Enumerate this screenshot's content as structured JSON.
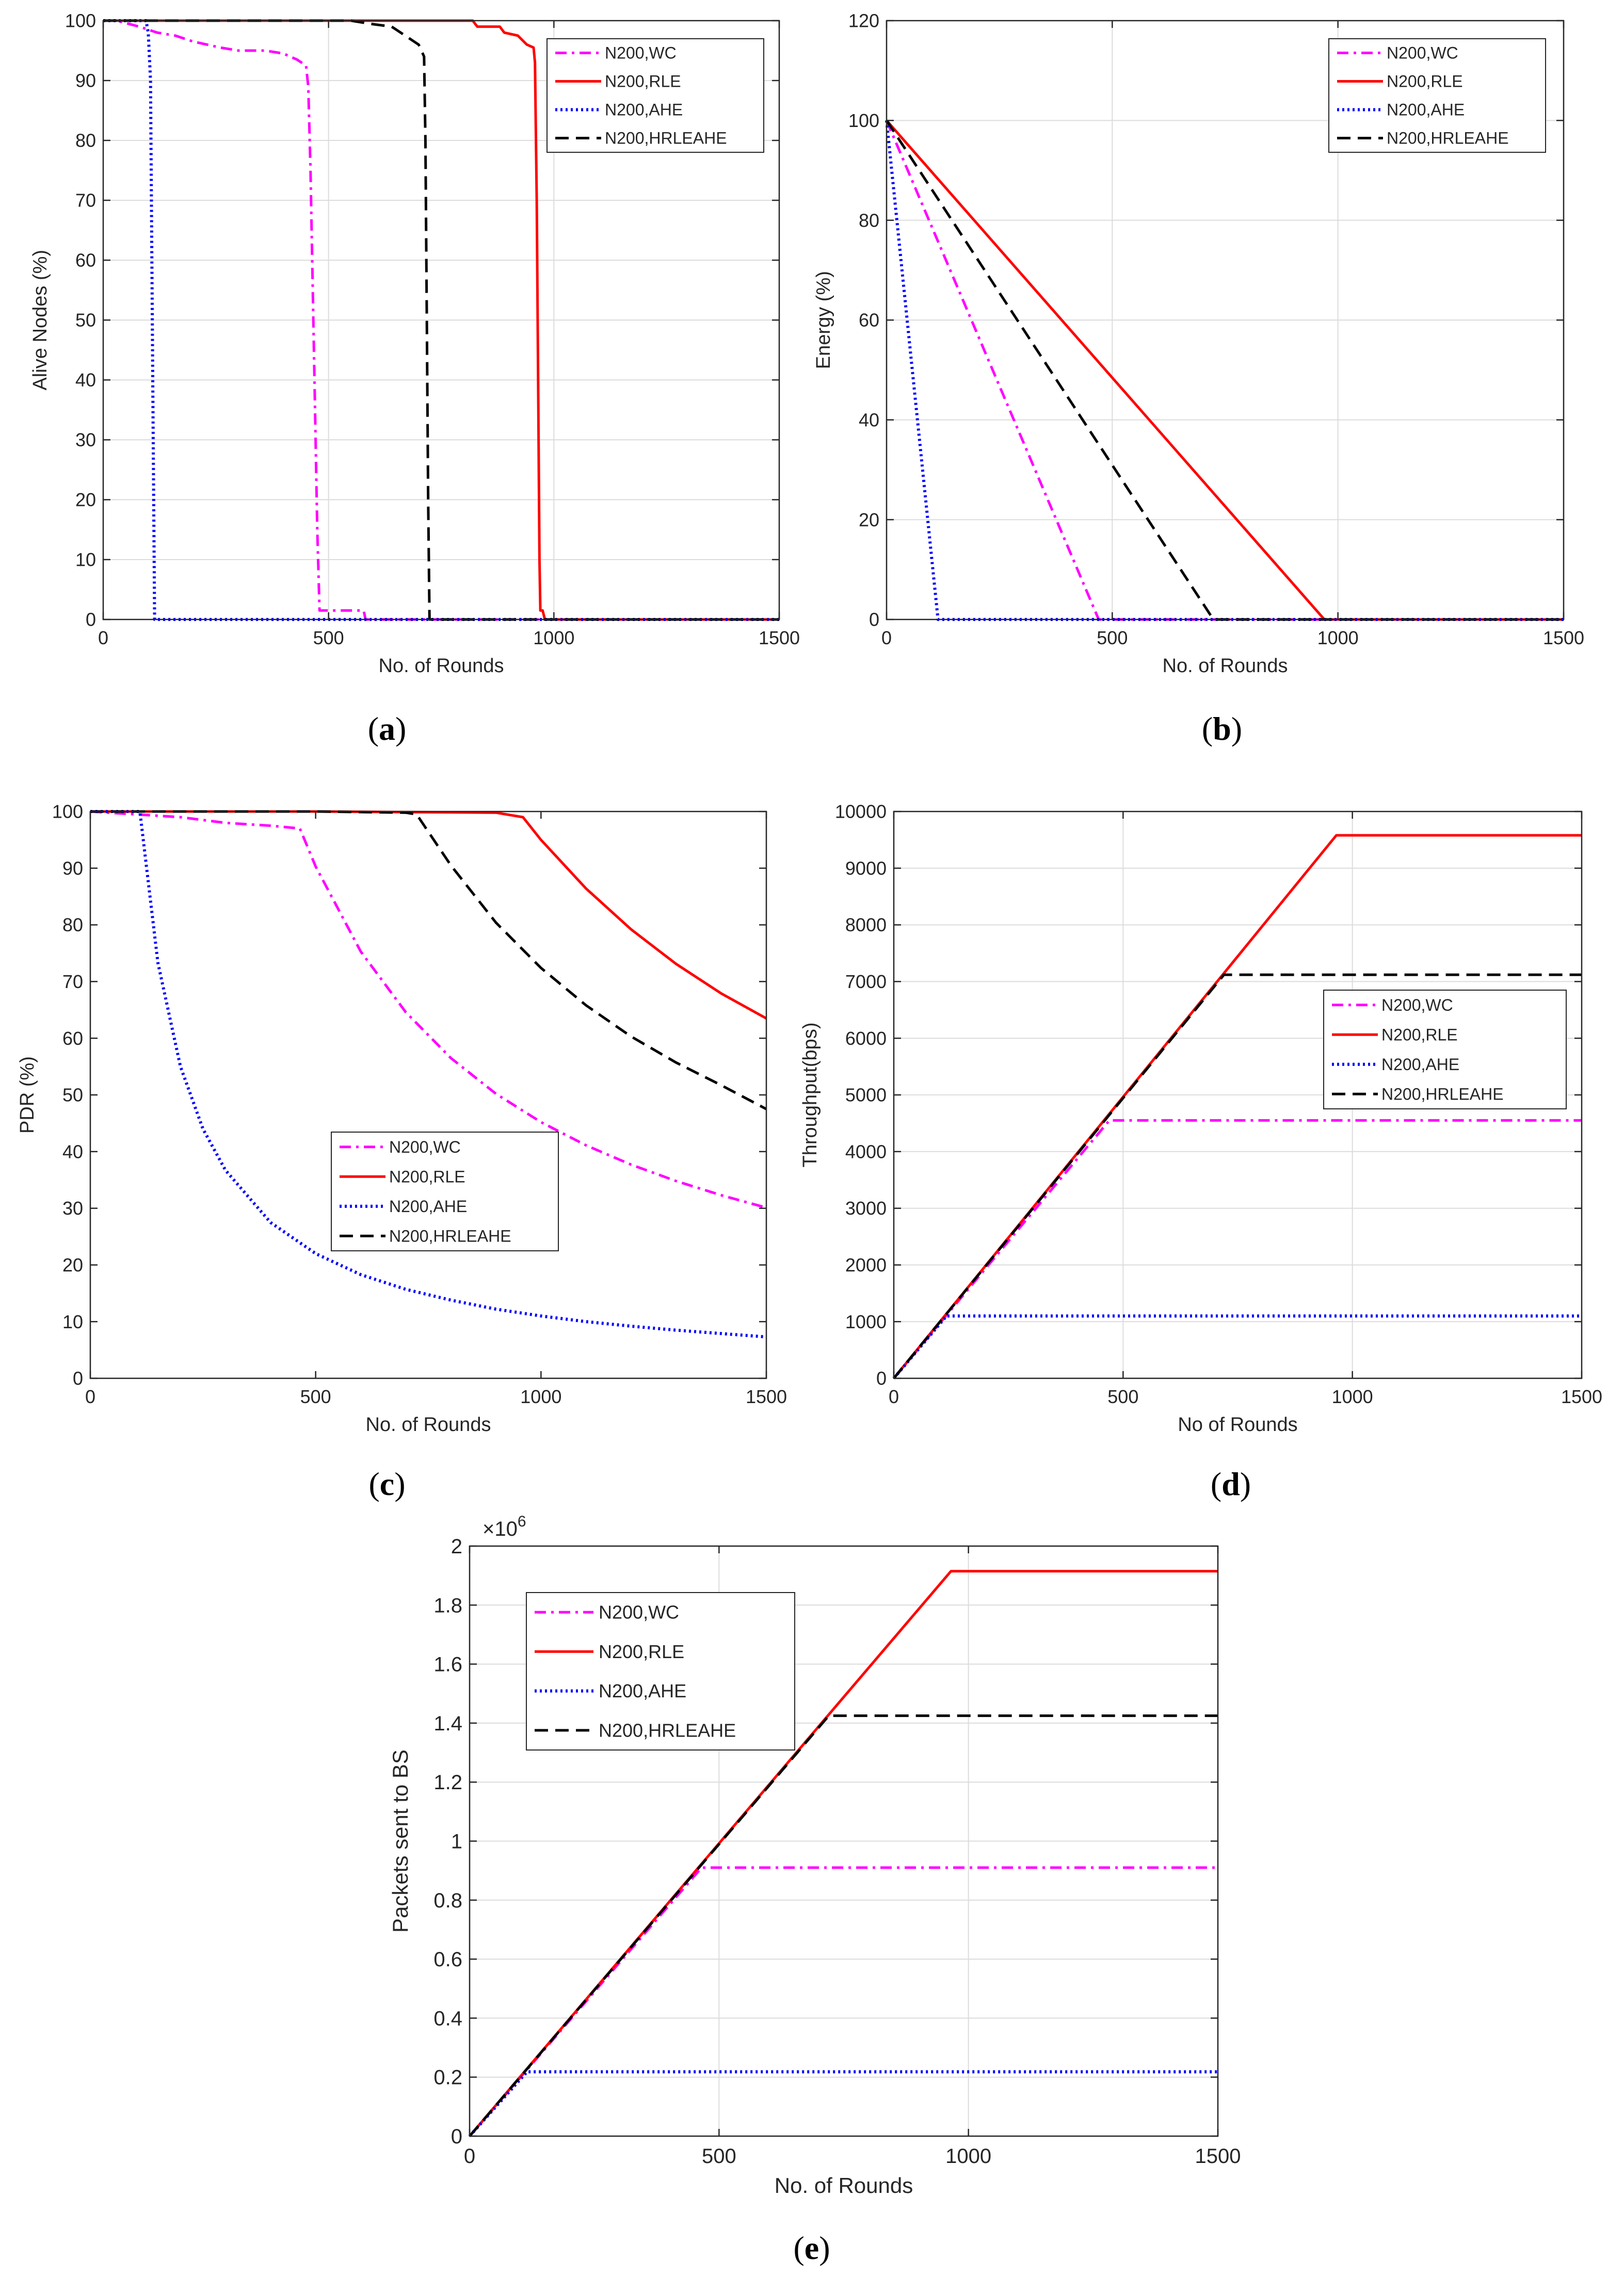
{
  "figure": {
    "panel_labels": [
      {
        "open": "(",
        "letter": "a",
        "close": ")"
      },
      {
        "open": "(",
        "letter": "b",
        "close": ")"
      },
      {
        "open": "(",
        "letter": "c",
        "close": ")"
      },
      {
        "open": "(",
        "letter": "d",
        "close": ")"
      },
      {
        "open": "(",
        "letter": "e",
        "close": ")"
      }
    ]
  },
  "chart_data": [
    {
      "id": "a",
      "type": "line",
      "title": "",
      "xlabel": "No. of Rounds",
      "ylabel": "Alive Nodes (%)",
      "xlim": [
        0,
        1500
      ],
      "ylim": [
        0,
        100
      ],
      "xticks": [
        0,
        500,
        1000,
        1500
      ],
      "yticks": [
        0,
        10,
        20,
        30,
        40,
        50,
        60,
        70,
        80,
        90,
        100
      ],
      "grid": true,
      "legend_position": "top-right",
      "series": [
        {
          "name": "N200,WC",
          "color": "#ff00ff",
          "dash": "dashdot",
          "points": [
            [
              0,
              100
            ],
            [
              30,
              100
            ],
            [
              80,
              99
            ],
            [
              120,
              98
            ],
            [
              160,
              97.5
            ],
            [
              200,
              96.5
            ],
            [
              260,
              95.5
            ],
            [
              300,
              95
            ],
            [
              360,
              95
            ],
            [
              400,
              94.5
            ],
            [
              430,
              93.5
            ],
            [
              450,
              92.5
            ],
            [
              455,
              89
            ],
            [
              460,
              75
            ],
            [
              465,
              55
            ],
            [
              470,
              35
            ],
            [
              475,
              15
            ],
            [
              480,
              1.5
            ],
            [
              578,
              1.5
            ],
            [
              582,
              0
            ],
            [
              1500,
              0
            ]
          ]
        },
        {
          "name": "N200,RLE",
          "color": "#ff0000",
          "dash": "solid",
          "points": [
            [
              0,
              100
            ],
            [
              820,
              100
            ],
            [
              830,
              99
            ],
            [
              880,
              99
            ],
            [
              890,
              98
            ],
            [
              920,
              97.5
            ],
            [
              940,
              96
            ],
            [
              955,
              95.5
            ],
            [
              958,
              93
            ],
            [
              962,
              70
            ],
            [
              965,
              40
            ],
            [
              968,
              10
            ],
            [
              970,
              1.5
            ],
            [
              975,
              1.5
            ],
            [
              980,
              0
            ],
            [
              1500,
              0
            ]
          ]
        },
        {
          "name": "N200,AHE",
          "color": "#0000ff",
          "dash": "dot",
          "points": [
            [
              0,
              100
            ],
            [
              95,
              100
            ],
            [
              100,
              98
            ],
            [
              105,
              90
            ],
            [
              108,
              60
            ],
            [
              111,
              30
            ],
            [
              114,
              0
            ],
            [
              1500,
              0
            ]
          ]
        },
        {
          "name": "N200,HRLEAHE",
          "color": "#000000",
          "dash": "dash",
          "points": [
            [
              0,
              100
            ],
            [
              550,
              100
            ],
            [
              590,
              99.5
            ],
            [
              640,
              99
            ],
            [
              680,
              97
            ],
            [
              700,
              96
            ],
            [
              712,
              94
            ],
            [
              715,
              80
            ],
            [
              718,
              50
            ],
            [
              721,
              20
            ],
            [
              724,
              0
            ],
            [
              1500,
              0
            ]
          ]
        }
      ]
    },
    {
      "id": "b",
      "type": "line",
      "title": "",
      "xlabel": "No. of Rounds",
      "ylabel": "Energy (%)",
      "xlim": [
        0,
        1500
      ],
      "ylim": [
        0,
        120
      ],
      "xticks": [
        0,
        500,
        1000,
        1500
      ],
      "yticks": [
        0,
        20,
        40,
        60,
        80,
        100,
        120
      ],
      "grid": true,
      "legend_position": "top-right",
      "series": [
        {
          "name": "N200,WC",
          "color": "#ff00ff",
          "dash": "dashdot",
          "points": [
            [
              0,
              100
            ],
            [
              470,
              0
            ],
            [
              1500,
              0
            ]
          ]
        },
        {
          "name": "N200,RLE",
          "color": "#ff0000",
          "dash": "solid",
          "points": [
            [
              0,
              100
            ],
            [
              970,
              0
            ],
            [
              1500,
              0
            ]
          ]
        },
        {
          "name": "N200,AHE",
          "color": "#0000ff",
          "dash": "dot",
          "points": [
            [
              0,
              100
            ],
            [
              114,
              0
            ],
            [
              1500,
              0
            ]
          ]
        },
        {
          "name": "N200,HRLEAHE",
          "color": "#000000",
          "dash": "dash",
          "points": [
            [
              0,
              100
            ],
            [
              724,
              0
            ],
            [
              1500,
              0
            ]
          ]
        }
      ]
    },
    {
      "id": "c",
      "type": "line",
      "title": "",
      "xlabel": "No. of Rounds",
      "ylabel": "PDR (%)",
      "xlim": [
        0,
        1500
      ],
      "ylim": [
        0,
        100
      ],
      "xticks": [
        0,
        500,
        1000,
        1500
      ],
      "yticks": [
        0,
        10,
        20,
        30,
        40,
        50,
        60,
        70,
        80,
        90,
        100
      ],
      "grid": false,
      "legend_position": "center",
      "series": [
        {
          "name": "N200,WC",
          "color": "#ff00ff",
          "dash": "dashdot",
          "points": [
            [
              0,
              100
            ],
            [
              100,
              99.5
            ],
            [
              200,
              99
            ],
            [
              300,
              98
            ],
            [
              400,
              97.5
            ],
            [
              465,
              97
            ],
            [
              500,
              90.3
            ],
            [
              600,
              75.3
            ],
            [
              700,
              64.6
            ],
            [
              800,
              56.5
            ],
            [
              900,
              50.2
            ],
            [
              1000,
              45.2
            ],
            [
              1100,
              41.1
            ],
            [
              1200,
              37.7
            ],
            [
              1300,
              34.8
            ],
            [
              1400,
              32.3
            ],
            [
              1500,
              30.1
            ]
          ]
        },
        {
          "name": "N200,RLE",
          "color": "#ff0000",
          "dash": "solid",
          "points": [
            [
              0,
              100
            ],
            [
              500,
              100
            ],
            [
              900,
              99.8
            ],
            [
              960,
              99
            ],
            [
              1000,
              95
            ],
            [
              1100,
              86.4
            ],
            [
              1200,
              79.2
            ],
            [
              1300,
              73.1
            ],
            [
              1400,
              67.9
            ],
            [
              1500,
              63.5
            ]
          ]
        },
        {
          "name": "N200,AHE",
          "color": "#0000ff",
          "dash": "dot",
          "points": [
            [
              0,
              100
            ],
            [
              110,
              100
            ],
            [
              150,
              73.3
            ],
            [
              200,
              55
            ],
            [
              250,
              44
            ],
            [
              300,
              36.7
            ],
            [
              400,
              27.5
            ],
            [
              500,
              22
            ],
            [
              600,
              18.3
            ],
            [
              700,
              15.7
            ],
            [
              800,
              13.8
            ],
            [
              900,
              12.2
            ],
            [
              1000,
              11
            ],
            [
              1100,
              10
            ],
            [
              1200,
              9.2
            ],
            [
              1300,
              8.5
            ],
            [
              1400,
              7.9
            ],
            [
              1500,
              7.3
            ]
          ]
        },
        {
          "name": "N200,HRLEAHE",
          "color": "#000000",
          "dash": "dash",
          "points": [
            [
              0,
              100
            ],
            [
              500,
              100
            ],
            [
              700,
              99.8
            ],
            [
              724,
              99.5
            ],
            [
              800,
              90.5
            ],
            [
              900,
              80.4
            ],
            [
              1000,
              72.4
            ],
            [
              1100,
              65.8
            ],
            [
              1200,
              60.3
            ],
            [
              1300,
              55.7
            ],
            [
              1400,
              51.7
            ],
            [
              1500,
              47.5
            ]
          ]
        }
      ]
    },
    {
      "id": "d",
      "type": "line",
      "title": "",
      "xlabel": "No of Rounds",
      "ylabel": "Throughput(bps)",
      "xlim": [
        0,
        1500
      ],
      "ylim": [
        0,
        10000
      ],
      "xticks": [
        0,
        500,
        1000,
        1500
      ],
      "yticks": [
        0,
        1000,
        2000,
        3000,
        4000,
        5000,
        6000,
        7000,
        8000,
        9000,
        10000
      ],
      "grid": true,
      "legend_position": "center-right",
      "series": [
        {
          "name": "N200,WC",
          "color": "#ff00ff",
          "dash": "dashdot",
          "points": [
            [
              0,
              0
            ],
            [
              470,
              4550
            ],
            [
              1500,
              4550
            ]
          ]
        },
        {
          "name": "N200,RLE",
          "color": "#ff0000",
          "dash": "solid",
          "points": [
            [
              0,
              0
            ],
            [
              965,
              9580
            ],
            [
              1500,
              9580
            ]
          ]
        },
        {
          "name": "N200,AHE",
          "color": "#0000ff",
          "dash": "dot",
          "points": [
            [
              0,
              0
            ],
            [
              115,
              1100
            ],
            [
              1500,
              1100
            ]
          ]
        },
        {
          "name": "N200,HRLEAHE",
          "color": "#000000",
          "dash": "dash",
          "points": [
            [
              0,
              0
            ],
            [
              720,
              7120
            ],
            [
              1500,
              7120
            ]
          ]
        }
      ]
    },
    {
      "id": "e",
      "type": "line",
      "title": "",
      "xlabel": "No. of Rounds",
      "ylabel": "Packets sent to BS",
      "exponent": "6",
      "xlim": [
        0,
        1500
      ],
      "ylim": [
        0,
        2
      ],
      "xticks": [
        0,
        500,
        1000,
        1500
      ],
      "yticks": [
        0,
        0.2,
        0.4,
        0.6,
        0.8,
        1,
        1.2,
        1.4,
        1.6,
        1.8,
        2
      ],
      "grid": true,
      "legend_position": "top-left",
      "series": [
        {
          "name": "N200,WC",
          "color": "#ff00ff",
          "dash": "dashdot",
          "points": [
            [
              0,
              0
            ],
            [
              465,
              0.91
            ],
            [
              1500,
              0.91
            ]
          ]
        },
        {
          "name": "N200,RLE",
          "color": "#ff0000",
          "dash": "solid",
          "points": [
            [
              0,
              0
            ],
            [
              965,
              1.915
            ],
            [
              1500,
              1.915
            ]
          ]
        },
        {
          "name": "N200,AHE",
          "color": "#0000ff",
          "dash": "dot",
          "points": [
            [
              0,
              0
            ],
            [
              115,
              0.218
            ],
            [
              1500,
              0.218
            ]
          ]
        },
        {
          "name": "N200,HRLEAHE",
          "color": "#000000",
          "dash": "dash",
          "points": [
            [
              0,
              0
            ],
            [
              720,
              1.425
            ],
            [
              1500,
              1.425
            ]
          ]
        }
      ]
    }
  ]
}
